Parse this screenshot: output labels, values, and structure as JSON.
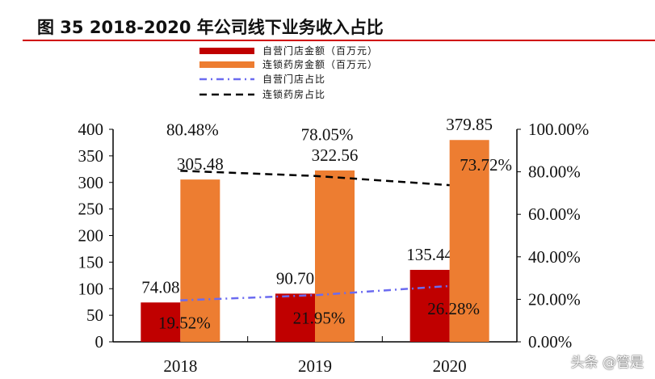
{
  "chart_data": {
    "type": "bar",
    "title": "图 35 2018-2020 年公司线下业务收入占比",
    "categories": [
      "2018",
      "2019",
      "2020"
    ],
    "series": [
      {
        "name": "自营门店金额（百万元）",
        "kind": "bar",
        "axis": "left",
        "color": "#c00000",
        "values": [
          74.08,
          90.7,
          135.44
        ],
        "labels": [
          "74.08",
          "90.70",
          "135.44"
        ]
      },
      {
        "name": "连锁药房金额（百万元）",
        "kind": "bar",
        "axis": "left",
        "color": "#ed7d31",
        "values": [
          305.48,
          322.56,
          379.85
        ],
        "labels": [
          "305.48",
          "322.56",
          "379.85"
        ]
      },
      {
        "name": "自营门店占比",
        "kind": "line",
        "style": "dash-dot",
        "axis": "right",
        "color": "#6b6bf0",
        "values": [
          19.52,
          21.95,
          26.28
        ],
        "labels": [
          "19.52%",
          "21.95%",
          "26.28%"
        ]
      },
      {
        "name": "连锁药房占比",
        "kind": "line",
        "style": "dashed",
        "axis": "right",
        "color": "#000000",
        "values": [
          80.48,
          78.05,
          73.72
        ],
        "labels": [
          "80.48%",
          "78.05%",
          "73.72%"
        ]
      }
    ],
    "ylim": [
      0,
      400
    ],
    "yticks": [
      "0",
      "50",
      "100",
      "150",
      "200",
      "250",
      "300",
      "350",
      "400"
    ],
    "y2lim": [
      0,
      100
    ],
    "y2ticks": [
      "0.00%",
      "20.00%",
      "40.00%",
      "60.00%",
      "80.00%",
      "100.00%"
    ],
    "legend": "top-right",
    "grid": false
  },
  "watermark": "头条 @管是"
}
